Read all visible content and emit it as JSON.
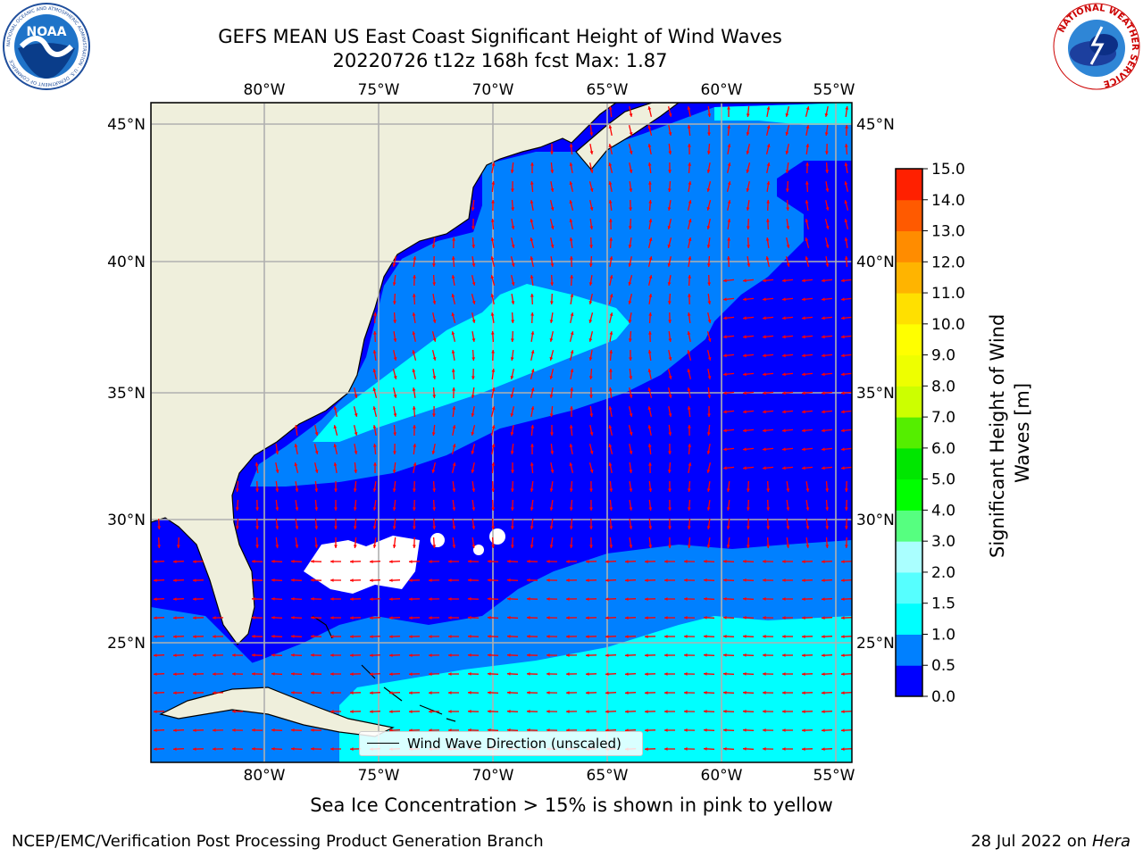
{
  "header": {
    "title": "GEFS MEAN US East Coast Significant Height of Wind Waves",
    "subtitle": "20220726 t12z 168h fcst   Max: 1.87"
  },
  "logos": {
    "noaa_text": "NOAA",
    "noaa_ring": "NATIONAL OCEANIC AND ATMOSPHERIC ADMINISTRATION · U.S. DEPARTMENT OF COMMERCE",
    "nws_ring": "NATIONAL WEATHER SERVICE"
  },
  "map": {
    "projection": "plate-carree",
    "lon_range": [
      -85,
      -54.2
    ],
    "lat_range": [
      20.5,
      46
    ],
    "lon_ticks": [
      {
        "value": -80,
        "label": "80°W"
      },
      {
        "value": -75,
        "label": "75°W"
      },
      {
        "value": -70,
        "label": "70°W"
      },
      {
        "value": -65,
        "label": "65°W"
      },
      {
        "value": -60,
        "label": "60°W"
      },
      {
        "value": -55,
        "label": "55°W"
      }
    ],
    "lat_ticks": [
      {
        "value": 45,
        "label": "45°N"
      },
      {
        "value": 40,
        "label": "40°N"
      },
      {
        "value": 35,
        "label": "35°N"
      },
      {
        "value": 30,
        "label": "30°N"
      },
      {
        "value": 25,
        "label": "25°N"
      }
    ],
    "grid": true,
    "colors": {
      "land": "#efefdc",
      "band_0_0_5": "#0000ff",
      "band_0_5_1": "#0080ff",
      "band_1_1_5": "#00ffff",
      "band_1_5_2": "#56ffff",
      "missing": "#ffffff",
      "arrows": "#ff0000",
      "grid": "#b0b0b0"
    },
    "legend_label": "Wind Wave Direction (unscaled)"
  },
  "colorbar": {
    "label_line1": "Significant Height of Wind",
    "label_line2": "Waves [m]",
    "levels": [
      0.0,
      0.5,
      1.0,
      1.5,
      2.0,
      3.0,
      4.0,
      5.0,
      6.0,
      7.0,
      8.0,
      9.0,
      10.0,
      11.0,
      12.0,
      13.0,
      14.0,
      15.0
    ],
    "tick_labels": [
      "0.0",
      "0.5",
      "1.0",
      "1.5",
      "2.0",
      "3.0",
      "4.0",
      "5.0",
      "6.0",
      "7.0",
      "8.0",
      "9.0",
      "10.0",
      "11.0",
      "12.0",
      "13.0",
      "14.0",
      "15.0"
    ],
    "colors": [
      "#0000ff",
      "#0080ff",
      "#00ffff",
      "#56ffff",
      "#aaffff",
      "#56ff80",
      "#00ff00",
      "#00e600",
      "#55ee00",
      "#ccff00",
      "#eeff00",
      "#ffff00",
      "#ffe000",
      "#ffb400",
      "#ff8c00",
      "#ff5a00",
      "#ff2000"
    ]
  },
  "footer": {
    "note": "Sea Ice Concentration > 15% is shown in pink to yellow",
    "left": "NCEP/EMC/Verification Post Processing Product Generation Branch",
    "right_prefix": "28 Jul 2022 on ",
    "right_host": "Hera"
  }
}
